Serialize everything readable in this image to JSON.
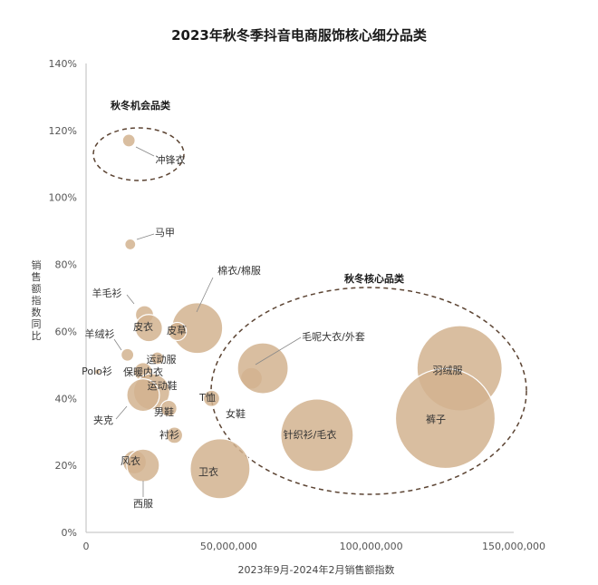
{
  "chart_data": {
    "type": "scatter",
    "title": "2023年秋冬季抖音电商服饰核心细分品类",
    "xlabel": "2023年9月-2024年2月销售额指数",
    "ylabel": "销售额指数同比",
    "xlim": [
      0,
      150000000
    ],
    "ylim": [
      0,
      1.4
    ],
    "x_ticks": [
      "0",
      "50,000,000",
      "100,000,000",
      "150,000,000"
    ],
    "y_ticks": [
      "0%",
      "20%",
      "40%",
      "60%",
      "80%",
      "100%",
      "120%",
      "140%"
    ],
    "bubble_color": "#d2b38f",
    "group_ellipse_color": "#5c4433",
    "groups": [
      {
        "label": "秋冬机会品类"
      },
      {
        "label": "秋冬核心品类"
      }
    ],
    "points": [
      {
        "label": "冲锋衣",
        "x": 15000000,
        "y": 1.17,
        "size": 7
      },
      {
        "label": "马甲",
        "x": 15500000,
        "y": 0.86,
        "size": 6
      },
      {
        "label": "棉衣/棉服",
        "x": 39000000,
        "y": 0.61,
        "size": 28
      },
      {
        "label": "羊毛衫",
        "x": 20500000,
        "y": 0.65,
        "size": 10
      },
      {
        "label": "皮衣",
        "x": 22000000,
        "y": 0.61,
        "size": 15
      },
      {
        "label": "皮草",
        "x": 32000000,
        "y": 0.6,
        "size": 10
      },
      {
        "label": "羊绒衫",
        "x": 14500000,
        "y": 0.53,
        "size": 7
      },
      {
        "label": "运动服",
        "x": 25000000,
        "y": 0.52,
        "size": 7
      },
      {
        "label": "Polo衫",
        "x": 4000000,
        "y": 0.48,
        "size": 3
      },
      {
        "label": "保暖内衣",
        "x": 20000000,
        "y": 0.48,
        "size": 10
      },
      {
        "label": "运动鞋",
        "x": 23000000,
        "y": 0.42,
        "size": 20
      },
      {
        "label": "T恤",
        "x": 44000000,
        "y": 0.4,
        "size": 9
      },
      {
        "label": "男鞋",
        "x": 29000000,
        "y": 0.37,
        "size": 9
      },
      {
        "label": "夹克",
        "x": 20000000,
        "y": 0.41,
        "size": 18
      },
      {
        "label": "衬衫",
        "x": 31000000,
        "y": 0.29,
        "size": 9
      },
      {
        "label": "风衣",
        "x": 17000000,
        "y": 0.21,
        "size": 13
      },
      {
        "label": "西服",
        "x": 20000000,
        "y": 0.2,
        "size": 18
      },
      {
        "label": "卫衣",
        "x": 47000000,
        "y": 0.19,
        "size": 33
      },
      {
        "label": "女鞋",
        "x": 58000000,
        "y": 0.46,
        "size": 12
      },
      {
        "label": "毛呢大衣/外套",
        "x": 62000000,
        "y": 0.49,
        "size": 28
      },
      {
        "label": "针织衫/毛衣",
        "x": 81000000,
        "y": 0.29,
        "size": 40
      },
      {
        "label": "羽绒服",
        "x": 131000000,
        "y": 0.49,
        "size": 47
      },
      {
        "label": "裤子",
        "x": 126000000,
        "y": 0.34,
        "size": 55
      }
    ]
  }
}
